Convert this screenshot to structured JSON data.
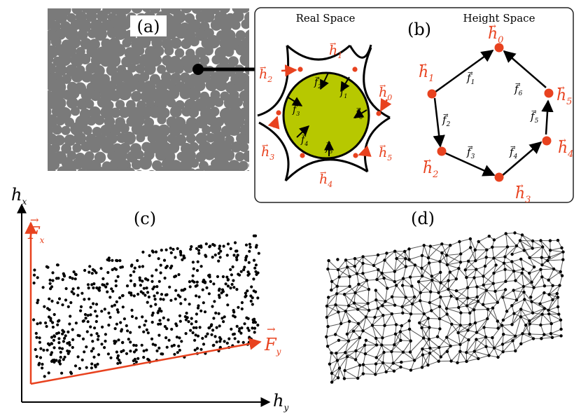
{
  "panel_labels": {
    "a": "(a)",
    "b": "(b)",
    "c": "(c)",
    "d": "(d)"
  },
  "panel_b": {
    "real_space_title": "Real Space",
    "height_space_title": "Height Space",
    "h_vectors": [
      "h",
      "h",
      "h",
      "h",
      "h",
      "h"
    ],
    "h_subscripts": [
      "0",
      "1",
      "2",
      "3",
      "4",
      "5"
    ],
    "f_subscripts": [
      "1",
      "2",
      "3",
      "4",
      "5",
      "6"
    ]
  },
  "panel_c": {
    "axis_x": "h",
    "axis_x_sub": "y",
    "axis_y": "h",
    "axis_y_sub": "x",
    "force_x": "F",
    "force_x_sub": "x",
    "force_y": "F",
    "force_y_sub": "y"
  },
  "colors": {
    "accent": "#e8421f",
    "particle": "#7a7a7a",
    "central_particle": "#b7c800",
    "ink": "#000000",
    "network_edge": "#555555"
  }
}
